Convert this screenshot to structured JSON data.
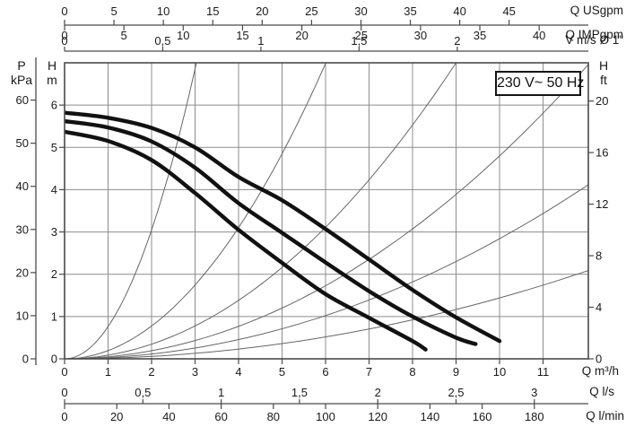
{
  "chart_data": {
    "type": "line",
    "title": "",
    "grid": true,
    "voltage_label": "230 V~ 50 Hz",
    "x_unit_primary": "m³/h",
    "y_unit_primary": "m",
    "xlim_m3h": [
      0,
      12.04
    ],
    "ylim_m": [
      0,
      7
    ],
    "axes": {
      "usgpm": {
        "title": "Q USgpm",
        "m3h_per_unit": 0.22712,
        "tick_values": [
          0,
          5,
          10,
          15,
          20,
          25,
          30,
          35,
          40,
          45
        ],
        "tick_labels": [
          "0",
          "5",
          "10",
          "15",
          "20",
          "25",
          "30",
          "35",
          "40",
          "45"
        ]
      },
      "impgpm": {
        "title": "Q IMPgpm",
        "m3h_per_unit": 0.27277,
        "tick_values": [
          0,
          5,
          10,
          15,
          20,
          25,
          30,
          35,
          40
        ],
        "tick_labels": [
          "0",
          "5",
          "10",
          "15",
          "20",
          "25",
          "30",
          "35",
          "40"
        ]
      },
      "vms": {
        "title": "V m/s Ø 1\"",
        "m3h_per_unit": 4.514,
        "tick_values": [
          0,
          0.5,
          1,
          1.5,
          2
        ],
        "tick_labels": [
          "0",
          "0,5",
          "1",
          "1,5",
          "2"
        ]
      },
      "m3h": {
        "title": "Q m³/h",
        "m3h_per_unit": 1,
        "tick_values": [
          0,
          1,
          2,
          3,
          4,
          5,
          6,
          7,
          8,
          9,
          10,
          11
        ],
        "tick_labels": [
          "0",
          "1",
          "2",
          "3",
          "4",
          "5",
          "6",
          "7",
          "8",
          "9",
          "10",
          "11"
        ]
      },
      "ls": {
        "title": "Q l/s",
        "m3h_per_unit": 3.6,
        "tick_values": [
          0,
          0.5,
          1,
          1.5,
          2,
          2.5,
          3
        ],
        "tick_labels": [
          "0",
          "0,5",
          "1",
          "1,5",
          "2",
          "2,5",
          "3"
        ]
      },
      "lmin": {
        "title": "Q l/min",
        "m3h_per_unit": 0.06,
        "tick_values": [
          0,
          20,
          40,
          60,
          80,
          100,
          120,
          140,
          160,
          180
        ],
        "tick_labels": [
          "0",
          "20",
          "40",
          "60",
          "80",
          "100",
          "120",
          "140",
          "160",
          "180"
        ]
      },
      "kpa": {
        "symbol": "P",
        "unit": "kPa",
        "m_per_unit": 0.10197,
        "tick_values": [
          0,
          10,
          20,
          30,
          40,
          50,
          60
        ],
        "tick_labels": [
          "0",
          "10",
          "20",
          "30",
          "40",
          "50",
          "60"
        ]
      },
      "hm": {
        "symbol": "H",
        "unit": "m",
        "m_per_unit": 1,
        "tick_values": [
          0,
          1,
          2,
          3,
          4,
          5,
          6
        ],
        "tick_labels": [
          "0",
          "1",
          "2",
          "3",
          "4",
          "5",
          "6"
        ]
      },
      "hft": {
        "symbol": "H",
        "unit": "ft",
        "m_per_unit": 0.3048,
        "tick_values": [
          0,
          4,
          8,
          12,
          16,
          20
        ],
        "tick_labels": [
          "0",
          "4",
          "8",
          "12",
          "16",
          "20"
        ]
      }
    },
    "pump_curves": [
      {
        "name": "curve-1-top",
        "points": [
          [
            0,
            5.82
          ],
          [
            1,
            5.7
          ],
          [
            2,
            5.46
          ],
          [
            3,
            5.0
          ],
          [
            4,
            4.3
          ],
          [
            5,
            3.75
          ],
          [
            6,
            3.07
          ],
          [
            7,
            2.35
          ],
          [
            8,
            1.63
          ],
          [
            9,
            0.98
          ],
          [
            10,
            0.42
          ]
        ]
      },
      {
        "name": "curve-2-middle",
        "points": [
          [
            0,
            5.62
          ],
          [
            1,
            5.47
          ],
          [
            2,
            5.14
          ],
          [
            3,
            4.52
          ],
          [
            4,
            3.68
          ],
          [
            5,
            2.98
          ],
          [
            6,
            2.28
          ],
          [
            7,
            1.6
          ],
          [
            8,
            1.0
          ],
          [
            9,
            0.5
          ],
          [
            9.45,
            0.35
          ]
        ]
      },
      {
        "name": "curve-3-bottom",
        "points": [
          [
            0,
            5.37
          ],
          [
            1,
            5.15
          ],
          [
            2,
            4.7
          ],
          [
            3,
            3.92
          ],
          [
            4,
            3.05
          ],
          [
            5,
            2.27
          ],
          [
            6,
            1.53
          ],
          [
            7,
            0.97
          ],
          [
            8,
            0.42
          ],
          [
            8.3,
            0.22
          ]
        ]
      }
    ],
    "system_curves": {
      "formula": "H = k × Q²  (Q in m³/h, H in m, from origin)",
      "k_values": [
        0.762,
        0.194,
        0.0864,
        0.048,
        0.0284,
        0.0144
      ]
    },
    "colors": {
      "pump_curve": "#111111",
      "system_curve": "#666666",
      "grid": "#8c8c8c",
      "border": "#4a4a4a",
      "text": "#1a1a1a",
      "background": "#ffffff"
    }
  }
}
